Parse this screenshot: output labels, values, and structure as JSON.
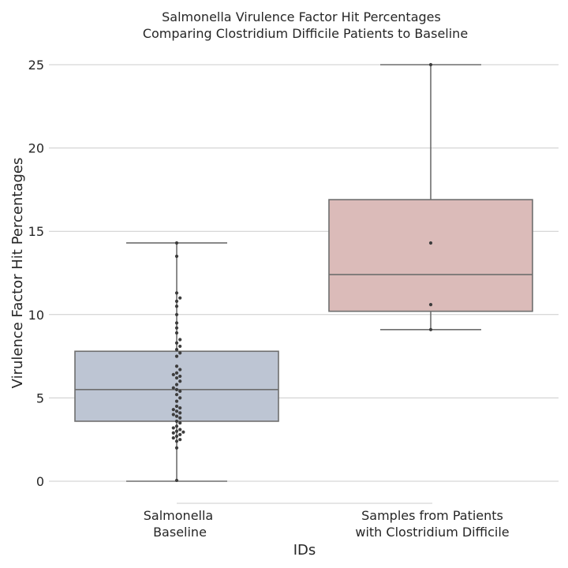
{
  "chart_data": {
    "type": "box",
    "title_lines": [
      "Salmonella Virulence Factor Hit Percentages",
      "Comparing Clostridium Difficile Patients to Baseline"
    ],
    "xlabel": "IDs",
    "ylabel": "Virulence Factor Hit Percentages",
    "ylim": [
      -1.3,
      26.5
    ],
    "yticks": [
      0,
      5,
      10,
      15,
      20,
      25
    ],
    "grid": true,
    "categories": [
      {
        "label_lines": [
          "Salmonella",
          "Baseline"
        ]
      },
      {
        "label_lines": [
          "Samples from Patients",
          "with Clostridium Difficile"
        ]
      }
    ],
    "boxes": [
      {
        "whisker_low": 0.0,
        "q1": 3.6,
        "median": 5.5,
        "q3": 7.8,
        "whisker_high": 14.3,
        "color": "#bdc5d3",
        "points": [
          0.05,
          2.0,
          2.4,
          2.5,
          2.6,
          2.7,
          2.8,
          2.9,
          2.95,
          3.0,
          3.1,
          3.2,
          3.3,
          3.5,
          3.6,
          3.8,
          3.9,
          4.0,
          4.1,
          4.2,
          4.3,
          4.4,
          4.5,
          4.8,
          5.0,
          5.2,
          5.4,
          5.5,
          5.6,
          5.8,
          6.0,
          6.2,
          6.3,
          6.4,
          6.5,
          6.7,
          6.9,
          7.5,
          7.7,
          7.9,
          8.1,
          8.3,
          8.5,
          8.9,
          9.2,
          9.5,
          10.0,
          10.5,
          10.8,
          11.0,
          11.3,
          13.5,
          14.3
        ]
      },
      {
        "whisker_low": 9.1,
        "q1": 10.2,
        "median": 12.4,
        "q3": 16.9,
        "whisker_high": 25.0,
        "color": "#dbbbb9",
        "points": [
          9.1,
          10.6,
          14.3,
          25.0
        ]
      }
    ]
  }
}
